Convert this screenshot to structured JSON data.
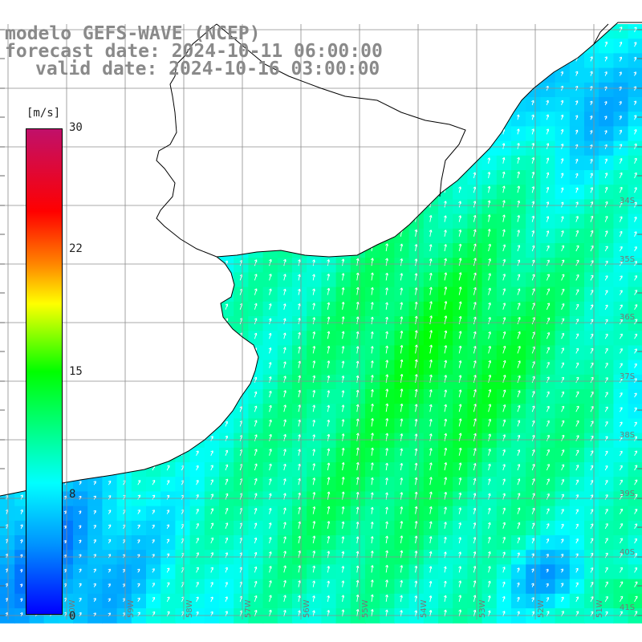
{
  "title": {
    "model": "modelo GEFS-WAVE (NCEP)",
    "forecast": "forecast date: 2024-10-11 06:00:00",
    "valid": "valid date: 2024-10-16 03:00:00"
  },
  "colorbar": {
    "unit": "[m/s]",
    "min": 0,
    "max": 30,
    "labels": [
      "30",
      "22",
      "15",
      "8",
      "0"
    ],
    "colors": [
      "#0000ff",
      "#0090ff",
      "#00ffff",
      "#00ff00",
      "#ffff00",
      "#ff8800",
      "#ff0000",
      "#c0106a"
    ]
  },
  "map": {
    "land_color": "#ffffff",
    "coast_color": "#000000",
    "grid_color": "#8c8c8c",
    "lat_labels": [
      "34S",
      "35S",
      "36S",
      "37S",
      "38S",
      "39S",
      "40S",
      "41S"
    ],
    "lon_labels": [
      "60W",
      "59W",
      "58W",
      "57W",
      "56W",
      "55W",
      "54W",
      "53W",
      "52W",
      "51W"
    ],
    "field": "wind speed with direction arrows"
  }
}
